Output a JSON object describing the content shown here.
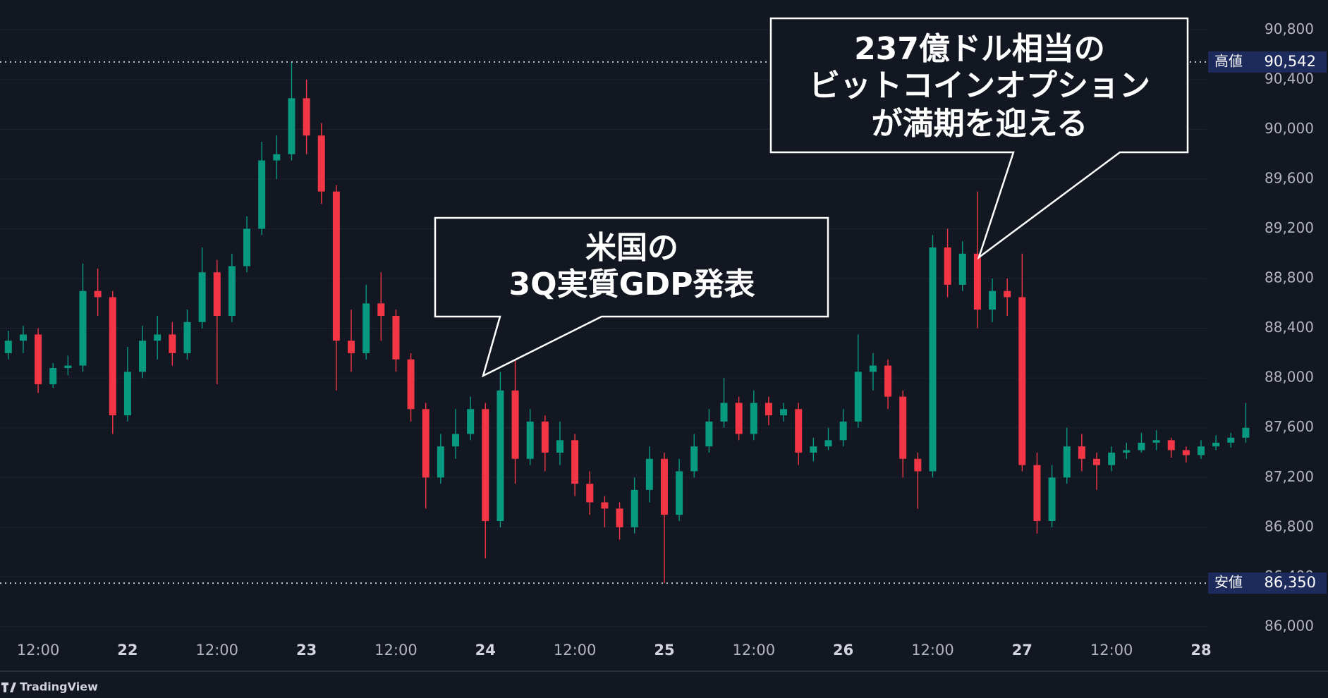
{
  "chart_data": {
    "type": "candlestick",
    "categories": [
      null,
      null,
      "12:00",
      null,
      null,
      null,
      null,
      null,
      "22",
      null,
      null,
      null,
      null,
      null,
      "12:00",
      null,
      null,
      null,
      null,
      null,
      "23",
      null,
      null,
      null,
      null,
      null,
      "12:00",
      null,
      null,
      null,
      null,
      null,
      "24",
      null,
      null,
      null,
      null,
      null,
      "12:00",
      null,
      null,
      null,
      null,
      null,
      "25",
      null,
      null,
      null,
      null,
      null,
      "12:00",
      null,
      null,
      null,
      null,
      null,
      "26",
      null,
      null,
      null,
      null,
      null,
      "12:00",
      null,
      null,
      null,
      null,
      null,
      "27",
      null,
      null,
      null,
      null,
      null,
      "12:00",
      null,
      null,
      null,
      null,
      null,
      "28",
      null,
      null,
      null
    ],
    "open": [
      88200,
      88300,
      88350,
      87950,
      88080,
      88100,
      88700,
      88650,
      87700,
      88050,
      88300,
      88350,
      88200,
      88450,
      88850,
      88500,
      88900,
      89200,
      89750,
      89800,
      90250,
      89950,
      89500,
      88300,
      88200,
      88600,
      88500,
      88150,
      87750,
      87200,
      87450,
      87550,
      87750,
      86850,
      87900,
      87350,
      87650,
      87400,
      87500,
      87150,
      87000,
      86950,
      86800,
      87100,
      87350,
      86900,
      87250,
      87450,
      87650,
      87800,
      87550,
      87800,
      87700,
      87750,
      87400,
      87450,
      87500,
      87650,
      88050,
      88100,
      87850,
      87350,
      87250,
      89050,
      88750,
      89000,
      88550,
      88700,
      88650,
      87300,
      86850,
      87200,
      87450,
      87350,
      87300,
      87400,
      87420,
      87480,
      87500,
      87420,
      87380,
      87450,
      87480,
      87520
    ],
    "high": [
      88380,
      88420,
      88400,
      88120,
      88180,
      88920,
      88880,
      88700,
      88250,
      88420,
      88500,
      88450,
      88550,
      89050,
      88950,
      89000,
      89300,
      89900,
      89950,
      90542,
      90400,
      90050,
      89550,
      88550,
      88750,
      88850,
      88550,
      88200,
      87800,
      87550,
      87750,
      87850,
      87800,
      88050,
      88150,
      87750,
      87700,
      87650,
      87550,
      87250,
      87050,
      87000,
      87200,
      87450,
      87400,
      87350,
      87550,
      87750,
      88000,
      87850,
      87900,
      87850,
      87800,
      87800,
      87520,
      87600,
      87750,
      88350,
      88200,
      88150,
      87900,
      87400,
      89150,
      89200,
      89100,
      89500,
      88800,
      88800,
      89000,
      87400,
      87300,
      87600,
      87550,
      87400,
      87450,
      87480,
      87560,
      87580,
      87520,
      87450,
      87500,
      87540,
      87560,
      87800
    ],
    "low": [
      88150,
      88200,
      87880,
      87920,
      88020,
      88050,
      88500,
      87550,
      87650,
      88000,
      88150,
      88100,
      88150,
      88400,
      87950,
      88450,
      88850,
      89150,
      89600,
      89750,
      89800,
      89400,
      87900,
      88050,
      88150,
      88300,
      88050,
      87650,
      86950,
      87150,
      87350,
      87500,
      86550,
      86800,
      87150,
      87300,
      87250,
      87300,
      87050,
      86900,
      86800,
      86700,
      86750,
      87000,
      86350,
      86850,
      87200,
      87400,
      87600,
      87500,
      87500,
      87620,
      87650,
      87300,
      87330,
      87420,
      87450,
      87600,
      87900,
      87750,
      87200,
      86950,
      87200,
      88650,
      88700,
      88400,
      88450,
      88500,
      87250,
      86750,
      86800,
      87150,
      87250,
      87100,
      87250,
      87350,
      87400,
      87420,
      87360,
      87320,
      87350,
      87420,
      87440,
      87480
    ],
    "close": [
      88300,
      88350,
      87950,
      88080,
      88100,
      88700,
      88650,
      87700,
      88050,
      88300,
      88350,
      88200,
      88450,
      88850,
      88500,
      88900,
      89200,
      89750,
      89800,
      90250,
      89950,
      89500,
      88300,
      88200,
      88600,
      88500,
      88150,
      87750,
      87200,
      87450,
      87550,
      87750,
      86850,
      87900,
      87350,
      87650,
      87400,
      87500,
      87150,
      87000,
      86950,
      86800,
      87100,
      87350,
      86900,
      87250,
      87450,
      87650,
      87800,
      87550,
      87800,
      87700,
      87750,
      87400,
      87450,
      87500,
      87650,
      88050,
      88100,
      87850,
      87350,
      87250,
      89050,
      88750,
      89000,
      88550,
      88700,
      88650,
      87300,
      86850,
      87200,
      87450,
      87350,
      87300,
      87400,
      87420,
      87480,
      87500,
      87420,
      87380,
      87450,
      87480,
      87520,
      87600
    ],
    "up_color": "#089981",
    "down_color": "#f23645",
    "ylim": [
      85920,
      91040
    ],
    "yticks": [
      {
        "value": 86000,
        "label": "86,000"
      },
      {
        "value": 86400,
        "label": "86,400"
      },
      {
        "value": 86800,
        "label": "86,800"
      },
      {
        "value": 87200,
        "label": "87,200"
      },
      {
        "value": 87600,
        "label": "87,600"
      },
      {
        "value": 88000,
        "label": "88,000"
      },
      {
        "value": 88400,
        "label": "88,400"
      },
      {
        "value": 88800,
        "label": "88,800"
      },
      {
        "value": 89200,
        "label": "89,200"
      },
      {
        "value": 89600,
        "label": "89,600"
      },
      {
        "value": 90000,
        "label": "90,000"
      },
      {
        "value": 90400,
        "label": "90,400"
      },
      {
        "value": 90800,
        "label": "90,800"
      }
    ],
    "grid": true,
    "markers": [
      {
        "name": "高値",
        "value": 90542,
        "label": "90,542"
      },
      {
        "name": "安値",
        "value": 86350,
        "label": "86,350"
      }
    ],
    "annotations": [
      {
        "lines": [
          "米国の",
          "3Q実質GDP発表"
        ]
      },
      {
        "lines": [
          "237億ドル相当の",
          "ビットコインオプション",
          "が満期を迎える"
        ]
      }
    ],
    "watermark": "TradingView"
  }
}
